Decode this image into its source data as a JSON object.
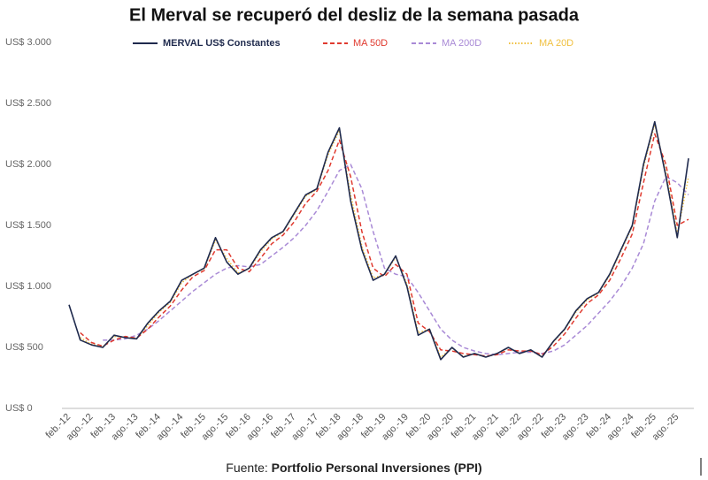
{
  "chart_data": {
    "type": "line",
    "title": "El Merval se recuperó del desliz de la semana pasada",
    "source_label": "Fuente:",
    "source": "Portfolio Personal Inversiones (PPI)",
    "categories": [
      "feb.-12",
      null,
      "ago.-12",
      null,
      "feb.-13",
      null,
      "ago.-13",
      null,
      "feb.-14",
      null,
      "ago.-14",
      null,
      "feb.-15",
      null,
      "ago.-15",
      null,
      "feb.-16",
      null,
      "ago.-16",
      null,
      "feb.-17",
      null,
      "ago.-17",
      null,
      "feb.-18",
      null,
      "ago.-18",
      null,
      "feb.-19",
      null,
      "ago.-19",
      null,
      "feb.-20",
      null,
      "ago.-20",
      null,
      "feb.-21",
      null,
      "ago.-21",
      null,
      "feb.-22",
      null,
      "ago.-22",
      null,
      "feb.-23",
      null,
      "ago.-23",
      null,
      "feb.-24",
      null,
      "ago.-24",
      null,
      "feb.-25",
      null,
      "ago.-25",
      null
    ],
    "series": [
      {
        "name": "MERVAL US$ Constantes",
        "color": "#1f2a4d",
        "dash": "solid",
        "values": [
          850,
          560,
          520,
          500,
          600,
          580,
          570,
          700,
          800,
          880,
          1050,
          1100,
          1150,
          1400,
          1200,
          1100,
          1150,
          1300,
          1400,
          1450,
          1600,
          1750,
          1800,
          2100,
          2300,
          1700,
          1300,
          1050,
          1100,
          1250,
          1000,
          600,
          650,
          400,
          500,
          420,
          450,
          420,
          450,
          500,
          450,
          480,
          420,
          550,
          650,
          800,
          900,
          950,
          1100,
          1300,
          1500,
          2000,
          2350,
          1900,
          1400,
          2050
        ]
      },
      {
        "name": "MA 50D",
        "color": "#e03a2f",
        "dash": "dashed",
        "values": [
          null,
          620,
          540,
          510,
          560,
          590,
          575,
          650,
          750,
          840,
          970,
          1080,
          1130,
          1300,
          1300,
          1150,
          1120,
          1230,
          1350,
          1420,
          1530,
          1680,
          1780,
          1950,
          2200,
          1900,
          1450,
          1150,
          1080,
          1180,
          1100,
          700,
          630,
          480,
          470,
          450,
          440,
          430,
          440,
          480,
          470,
          470,
          440,
          510,
          610,
          740,
          860,
          930,
          1050,
          1230,
          1430,
          1850,
          2250,
          2000,
          1500,
          1550
        ]
      },
      {
        "name": "MA 200D",
        "color": "#a98ad6",
        "dash": "dashed",
        "values": [
          null,
          null,
          null,
          560,
          560,
          570,
          600,
          650,
          720,
          800,
          880,
          960,
          1030,
          1100,
          1150,
          1170,
          1160,
          1180,
          1250,
          1320,
          1400,
          1500,
          1620,
          1780,
          1950,
          2000,
          1800,
          1450,
          1150,
          1100,
          1080,
          950,
          800,
          650,
          560,
          500,
          470,
          450,
          440,
          450,
          460,
          460,
          450,
          470,
          520,
          600,
          680,
          780,
          880,
          1000,
          1150,
          1350,
          1700,
          1900,
          1850,
          1750
        ]
      },
      {
        "name": "MA 20D",
        "color": "#f0c040",
        "dash": "dotted",
        "values": [
          null,
          580,
          525,
          505,
          590,
          585,
          572,
          680,
          790,
          870,
          1030,
          1100,
          1145,
          1380,
          1230,
          1110,
          1145,
          1285,
          1390,
          1445,
          1590,
          1740,
          1795,
          2080,
          2280,
          1750,
          1330,
          1070,
          1095,
          1240,
          1020,
          620,
          650,
          420,
          495,
          425,
          448,
          422,
          448,
          498,
          452,
          478,
          425,
          545,
          645,
          790,
          890,
          945,
          1090,
          1290,
          1490,
          1980,
          2330,
          1930,
          1430,
          1900
        ]
      }
    ],
    "ylim": [
      0,
      3000
    ],
    "yticks": [
      {
        "value": 0,
        "label": "US$ 0"
      },
      {
        "value": 500,
        "label": "US$ 500"
      },
      {
        "value": 1000,
        "label": "US$ 1.000"
      },
      {
        "value": 1500,
        "label": "US$ 1.500"
      },
      {
        "value": 2000,
        "label": "US$ 2.000"
      },
      {
        "value": 2500,
        "label": "US$ 2.500"
      },
      {
        "value": 3000,
        "label": "US$ 3.000"
      }
    ],
    "grid": false,
    "legend": "top"
  }
}
